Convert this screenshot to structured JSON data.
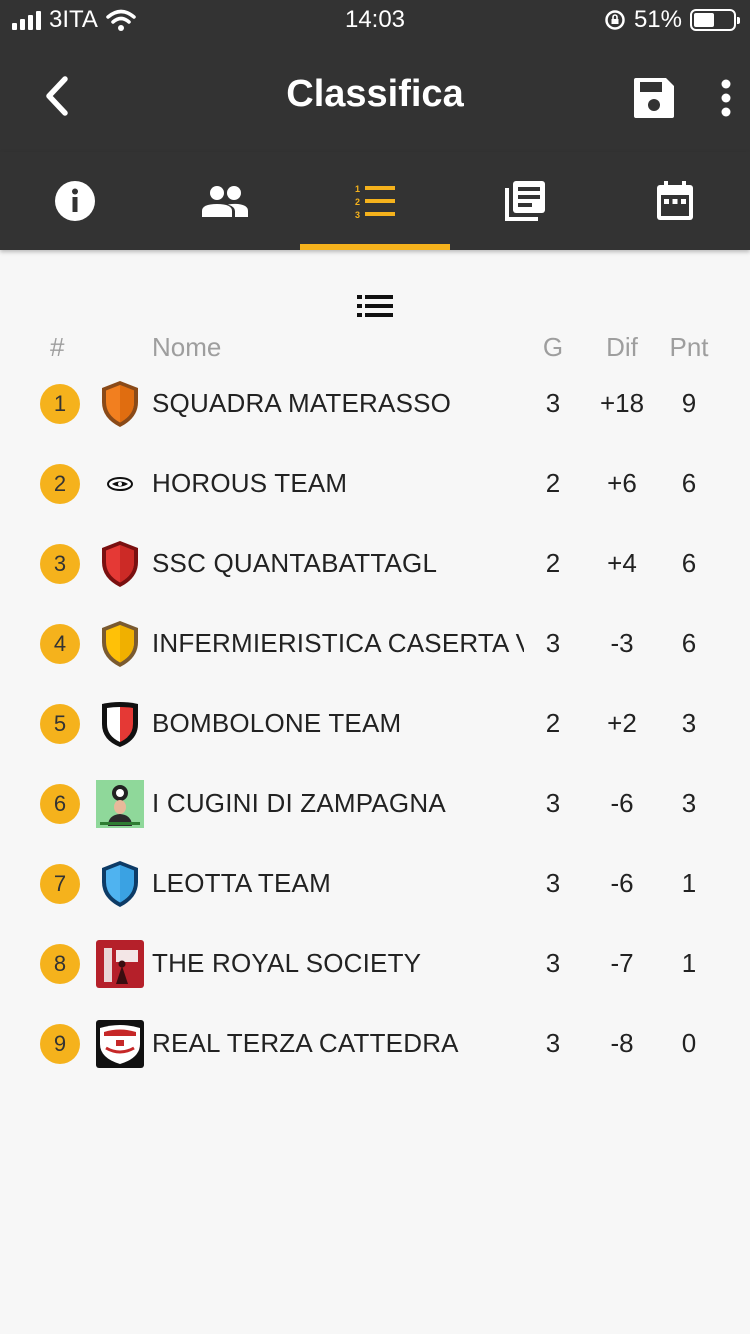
{
  "status": {
    "carrier": "3ITA",
    "time": "14:03",
    "battery": "51%"
  },
  "header": {
    "title": "Classifica"
  },
  "tabs": [
    {
      "icon": "info-icon",
      "active": false
    },
    {
      "icon": "people-icon",
      "active": false
    },
    {
      "icon": "ranked-list-icon",
      "active": true
    },
    {
      "icon": "news-icon",
      "active": false
    },
    {
      "icon": "calendar-icon",
      "active": false
    }
  ],
  "colors": {
    "bar": "#333333",
    "accent": "#f5b21c",
    "background": "#f7f7f7"
  },
  "table": {
    "headers": {
      "pos": "#",
      "name": "Nome",
      "g": "G",
      "dif": "Dif",
      "pnt": "Pnt"
    },
    "rows": [
      {
        "pos": "1",
        "name": "SQUADRA MATERASSO",
        "g": "3",
        "dif": "+18",
        "pnt": "9",
        "logo": "shield-orange"
      },
      {
        "pos": "2",
        "name": "HOROUS TEAM",
        "g": "2",
        "dif": "+6",
        "pnt": "6",
        "logo": "small-emblem"
      },
      {
        "pos": "3",
        "name": "SSC QUANTABATTAGL",
        "g": "2",
        "dif": "+4",
        "pnt": "6",
        "logo": "shield-red"
      },
      {
        "pos": "4",
        "name": "INFERMIERISTICA CASERTA V:",
        "g": "3",
        "dif": "-3",
        "pnt": "6",
        "logo": "shield-yellow"
      },
      {
        "pos": "5",
        "name": "BOMBOLONE TEAM",
        "g": "2",
        "dif": "+2",
        "pnt": "3",
        "logo": "shield-black-red"
      },
      {
        "pos": "6",
        "name": "I CUGINI DI ZAMPAGNA",
        "g": "3",
        "dif": "-6",
        "pnt": "3",
        "logo": "photo-green"
      },
      {
        "pos": "7",
        "name": "LEOTTA TEAM",
        "g": "3",
        "dif": "-6",
        "pnt": "1",
        "logo": "shield-blue"
      },
      {
        "pos": "8",
        "name": "THE ROYAL SOCIETY",
        "g": "3",
        "dif": "-7",
        "pnt": "1",
        "logo": "photo-red"
      },
      {
        "pos": "9",
        "name": "REAL TERZA CATTEDRA",
        "g": "3",
        "dif": "-8",
        "pnt": "0",
        "logo": "crest-black"
      }
    ]
  }
}
